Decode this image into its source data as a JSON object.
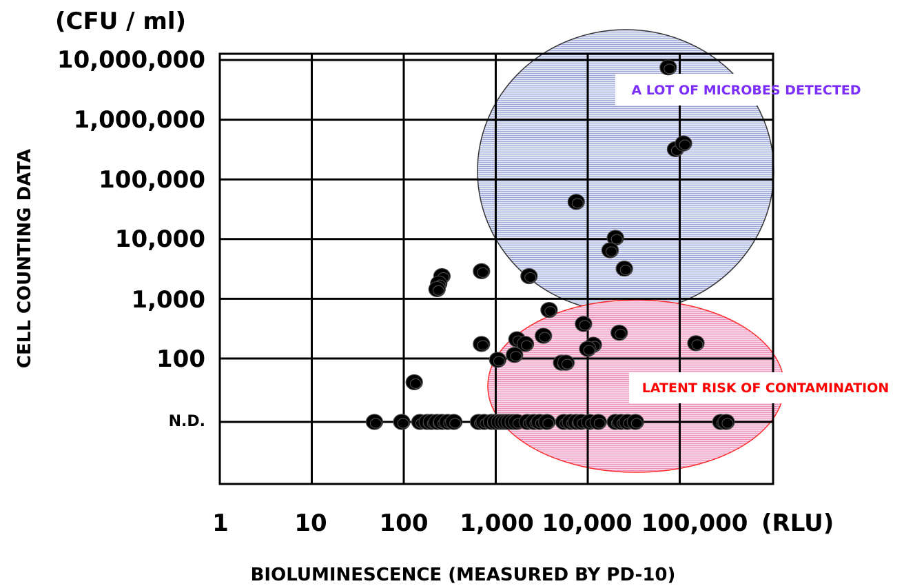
{
  "chart_data": {
    "type": "scatter",
    "title": "",
    "xlabel": "BIOLUMINESCENCE (MEASURED BY PD-10)",
    "ylabel": "CELL COUNTING DATA",
    "x_unit": "(RLU)",
    "y_unit": "(CFU / ml)",
    "x_scale": "log",
    "y_scale": "log",
    "xlim": [
      1,
      1000000
    ],
    "y_range_note": "N.D. plotted below 100",
    "x_tick_labels": [
      "1",
      "10",
      "100",
      "1,000",
      "10,000",
      "100,000"
    ],
    "y_tick_labels": [
      "N.D.",
      "100",
      "1,000",
      "10,000",
      "100,000",
      "1,000,000",
      "10,000,000"
    ],
    "grid": true,
    "annotations": [
      {
        "text": "A LOT OF MICROBES DETECTED",
        "color": "#7b2ff7",
        "region_color": "#a9b4e0"
      },
      {
        "text": "LATENT RISK OF CONTAMINATION",
        "color": "#ff0000",
        "region_color": "#f2a6c8"
      }
    ],
    "point_color": "#000000",
    "nd_points_x": [
      48,
      95,
      150,
      180,
      200,
      230,
      260,
      300,
      350,
      650,
      750,
      900,
      1000,
      1100,
      1200,
      1300,
      1400,
      1550,
      1700,
      2200,
      2600,
      3000,
      3600,
      5500,
      6500,
      7500,
      8500,
      10500,
      13000,
      20000,
      23000,
      27000,
      33000,
      280000,
      320000
    ],
    "points": [
      {
        "x": 75000,
        "y": 7500000
      },
      {
        "x": 90000,
        "y": 320000
      },
      {
        "x": 110000,
        "y": 400000
      },
      {
        "x": 7500,
        "y": 42000
      },
      {
        "x": 20000,
        "y": 10500
      },
      {
        "x": 17500,
        "y": 6500
      },
      {
        "x": 25000,
        "y": 3200
      },
      {
        "x": 260,
        "y": 2400
      },
      {
        "x": 240,
        "y": 1800
      },
      {
        "x": 230,
        "y": 1450
      },
      {
        "x": 700,
        "y": 2900
      },
      {
        "x": 2300,
        "y": 2400
      },
      {
        "x": 3800,
        "y": 650
      },
      {
        "x": 9000,
        "y": 380
      },
      {
        "x": 22000,
        "y": 270
      },
      {
        "x": 11500,
        "y": 170
      },
      {
        "x": 10000,
        "y": 145
      },
      {
        "x": 3300,
        "y": 240
      },
      {
        "x": 1700,
        "y": 210
      },
      {
        "x": 2100,
        "y": 175
      },
      {
        "x": 1600,
        "y": 115
      },
      {
        "x": 700,
        "y": 175
      },
      {
        "x": 1050,
        "y": 95
      },
      {
        "x": 5200,
        "y": 85
      },
      {
        "x": 5800,
        "y": 85
      },
      {
        "x": 130,
        "y": 40
      },
      {
        "x": 150000,
        "y": 180
      }
    ]
  }
}
